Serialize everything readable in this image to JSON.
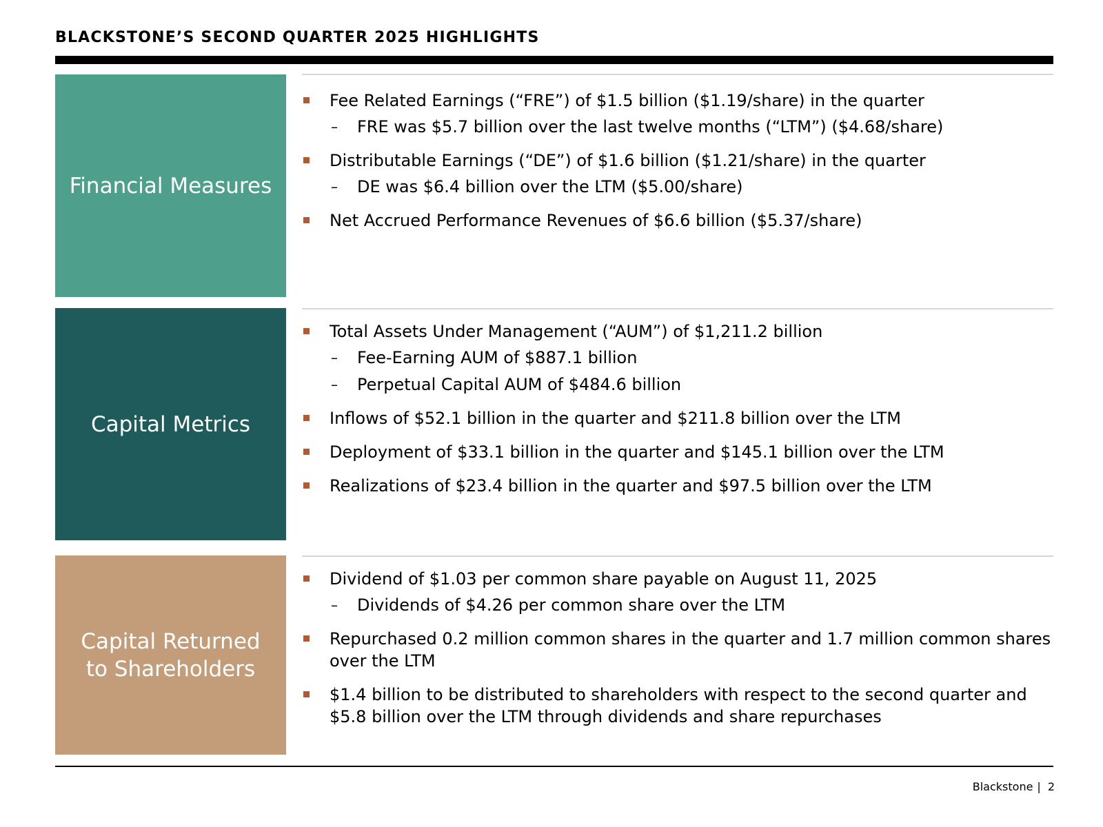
{
  "title": "BLACKSTONE’S SECOND QUARTER 2025 HIGHLIGHTS",
  "colors": {
    "financial": "#4E9F8C",
    "capital_metrics": "#1F5B5A",
    "capital_returned": "#C39D79",
    "bullet": "#B35A31"
  },
  "sections": [
    {
      "label_lines": [
        "Financial Measures"
      ],
      "bullets": [
        {
          "text": "Fee Related Earnings (“FRE”) of $1.5 billion ($1.19/share) in the quarter",
          "subs": [
            "FRE was $5.7 billion over the last twelve months (“LTM”) ($4.68/share)"
          ]
        },
        {
          "text": "Distributable Earnings (“DE”) of $1.6 billion ($1.21/share) in the quarter",
          "subs": [
            "DE was $6.4 billion over the LTM ($5.00/share)"
          ]
        },
        {
          "text": "Net Accrued Performance Revenues of $6.6 billion ($5.37/share)",
          "subs": []
        }
      ]
    },
    {
      "label_lines": [
        "Capital Metrics"
      ],
      "bullets": [
        {
          "text": "Total Assets Under Management (“AUM”) of $1,211.2 billion",
          "subs": [
            "Fee-Earning AUM of $887.1 billion",
            "Perpetual Capital AUM of $484.6 billion"
          ]
        },
        {
          "text": "Inflows of $52.1 billion in the quarter and $211.8 billion over the LTM",
          "subs": []
        },
        {
          "text": "Deployment of $33.1 billion in the quarter and $145.1 billion over the LTM",
          "subs": []
        },
        {
          "text": "Realizations of $23.4 billion in the quarter and $97.5 billion over the LTM",
          "subs": []
        }
      ]
    },
    {
      "label_lines": [
        "Capital Returned",
        "to Shareholders"
      ],
      "bullets": [
        {
          "text": "Dividend of $1.03 per common share payable on August 11, 2025",
          "subs": [
            "Dividends of $4.26 per common share over the LTM"
          ]
        },
        {
          "text": "Repurchased 0.2 million common shares in the quarter and 1.7 million common shares over the LTM",
          "subs": []
        },
        {
          "text": "$1.4 billion to be distributed to shareholders with respect to the second quarter and $5.8 billion over the LTM through dividends and share repurchases",
          "subs": []
        }
      ]
    }
  ],
  "footer": {
    "brand": "Blackstone",
    "separator": "|",
    "page_number": "2"
  }
}
